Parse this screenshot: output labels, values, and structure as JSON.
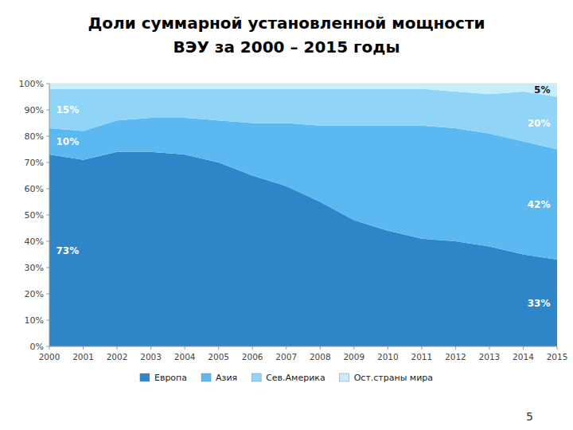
{
  "chart_data": {
    "type": "area",
    "stacked": true,
    "title": "Доли суммарной установленной мощности",
    "subtitle": "ВЭУ за 2000 – 2015 годы",
    "x": [
      2000,
      2001,
      2002,
      2003,
      2004,
      2005,
      2006,
      2007,
      2008,
      2009,
      2010,
      2011,
      2012,
      2013,
      2014,
      2015
    ],
    "series": [
      {
        "name": "Европа",
        "color": "#2E86C8",
        "values": [
          73,
          71,
          74,
          74,
          73,
          70,
          65,
          61,
          55,
          48,
          44,
          41,
          40,
          38,
          35,
          33
        ]
      },
      {
        "name": "Азия",
        "color": "#5BB8F0",
        "values": [
          10,
          11,
          12,
          13,
          14,
          16,
          20,
          24,
          29,
          36,
          40,
          43,
          43,
          43,
          43,
          42
        ]
      },
      {
        "name": "Сев.Америка",
        "color": "#90D4F7",
        "values": [
          15,
          16,
          12,
          11,
          11,
          12,
          13,
          13,
          14,
          14,
          14,
          14,
          14,
          15,
          19,
          20
        ]
      },
      {
        "name": "Ост.страны мира",
        "color": "#C8EDFB",
        "values": [
          2,
          2,
          2,
          2,
          2,
          2,
          2,
          2,
          2,
          2,
          2,
          2,
          3,
          4,
          3,
          5
        ]
      }
    ],
    "xlim": [
      2000,
      2015
    ],
    "xticks": [
      2000,
      2001,
      2002,
      2003,
      2004,
      2005,
      2006,
      2007,
      2008,
      2009,
      2010,
      2011,
      2012,
      2013,
      2014,
      2015
    ],
    "ylim": [
      0,
      100
    ],
    "yticks": [
      {
        "value": 0,
        "label": "0%"
      },
      {
        "value": 10,
        "label": "10%"
      },
      {
        "value": 20,
        "label": "20%"
      },
      {
        "value": 30,
        "label": "30%"
      },
      {
        "value": 40,
        "label": "40%"
      },
      {
        "value": 50,
        "label": "50%"
      },
      {
        "value": 60,
        "label": "60%"
      },
      {
        "value": 70,
        "label": "70%"
      },
      {
        "value": 80,
        "label": "80%"
      },
      {
        "value": 90,
        "label": "90%"
      },
      {
        "value": 100,
        "label": "100%"
      }
    ],
    "grid": true,
    "legend": "bottom",
    "annotations": [
      {
        "text": "73%",
        "x": 2000.2,
        "y": 36.5
      },
      {
        "text": "10%",
        "x": 2000.2,
        "y": 78.0
      },
      {
        "text": "15%",
        "x": 2000.2,
        "y": 90.0
      },
      {
        "text": "33%",
        "x": 2014.8,
        "y": 16.5
      },
      {
        "text": "42%",
        "x": 2014.8,
        "y": 54.0
      },
      {
        "text": "20%",
        "x": 2014.8,
        "y": 85.0
      },
      {
        "text": "5%",
        "x": 2014.8,
        "y": 97.5
      }
    ],
    "page_number": "5"
  }
}
